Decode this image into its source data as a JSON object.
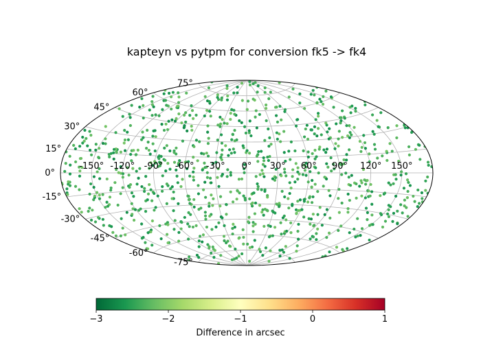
{
  "chart_data": {
    "type": "scatter",
    "projection": "aitoff",
    "title": "kapteyn vs pytpm for conversion fk5 -> fk4",
    "longitude_ticks": [
      -150,
      -120,
      -90,
      -60,
      -30,
      0,
      30,
      60,
      90,
      120,
      150
    ],
    "latitude_ticks": [
      -75,
      -60,
      -45,
      -30,
      -15,
      0,
      15,
      30,
      45,
      60,
      75
    ],
    "longitude_tick_labels": [
      "-150°",
      "-120°",
      "-90°",
      "-60°",
      "-30°",
      "0°",
      "30°",
      "60°",
      "90°",
      "120°",
      "150°"
    ],
    "latitude_tick_labels": [
      "-75°",
      "-60°",
      "-45°",
      "-30°",
      "-15°",
      "0°",
      "15°",
      "30°",
      "45°",
      "60°",
      "75°"
    ],
    "grid": true,
    "points": {
      "count": 1000,
      "lon_range": [
        -180,
        180
      ],
      "lat_range": [
        -90,
        90
      ],
      "value_range": [
        -2.7,
        -2.1
      ],
      "note": "difference values cluster between about -2.7 and -2.1 arcsec"
    },
    "colorbar": {
      "label": "Difference in arcsec",
      "colormap": "RdYlGn_r",
      "vmin": -3,
      "vmax": 1,
      "ticks": [
        -3,
        -2,
        -1,
        0,
        1
      ],
      "tick_labels": [
        "−3",
        "−2",
        "−1",
        "0",
        "1"
      ]
    }
  },
  "colors": {
    "grid": "#b0b0b0",
    "outline": "#000000",
    "cmap_stops": [
      "#006837",
      "#1a9850",
      "#66bd63",
      "#a6d96a",
      "#d9ef8b",
      "#ffffbf",
      "#fee08b",
      "#fdae61",
      "#f46d43",
      "#d73027",
      "#a50026"
    ]
  }
}
